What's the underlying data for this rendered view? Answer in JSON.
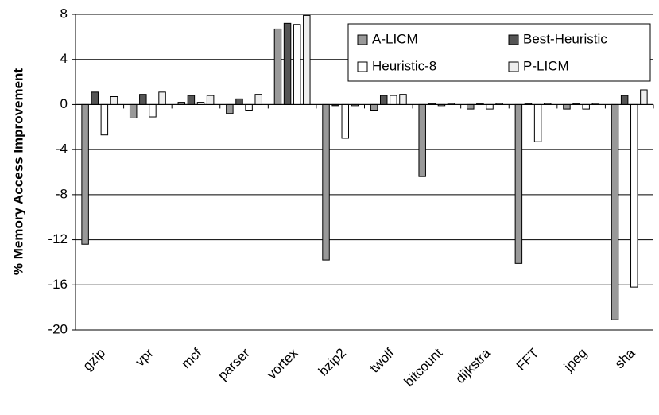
{
  "chart_data": {
    "type": "bar",
    "y_label": "% Memory Access Improvement",
    "categories": [
      "gzip",
      "vpr",
      "mcf",
      "parser",
      "vortex",
      "bzip2",
      "twolf",
      "bitcount",
      "dijkstra",
      "FFT",
      "jpeg",
      "sha"
    ],
    "series": [
      {
        "name": "A-LICM",
        "color": "#999999",
        "values": [
          -12.4,
          -1.2,
          0.2,
          -0.8,
          6.7,
          -13.8,
          -0.5,
          -6.4,
          -0.4,
          -14.1,
          -0.4,
          -19.1
        ]
      },
      {
        "name": "Best-Heuristic",
        "color": "#555555",
        "values": [
          1.1,
          0.9,
          0.8,
          0.5,
          7.2,
          -0.1,
          0.8,
          0.1,
          0.1,
          0.1,
          0.1,
          0.8
        ]
      },
      {
        "name": "Heuristic-8",
        "color": "#ffffff",
        "values": [
          -2.7,
          -1.1,
          0.2,
          -0.5,
          7.1,
          -3.0,
          0.8,
          -0.1,
          -0.4,
          -3.3,
          -0.4,
          -16.2
        ]
      },
      {
        "name": "P-LICM",
        "color": "#eeeeee",
        "values": [
          0.7,
          1.1,
          0.8,
          0.9,
          7.9,
          -0.1,
          0.9,
          0.1,
          0.1,
          0.1,
          0.1,
          1.3
        ]
      }
    ],
    "ylim": [
      -20,
      8
    ],
    "yticks": [
      -20,
      -16,
      -12,
      -8,
      -4,
      0,
      4,
      8
    ],
    "grid": true,
    "legend": "top-right"
  }
}
